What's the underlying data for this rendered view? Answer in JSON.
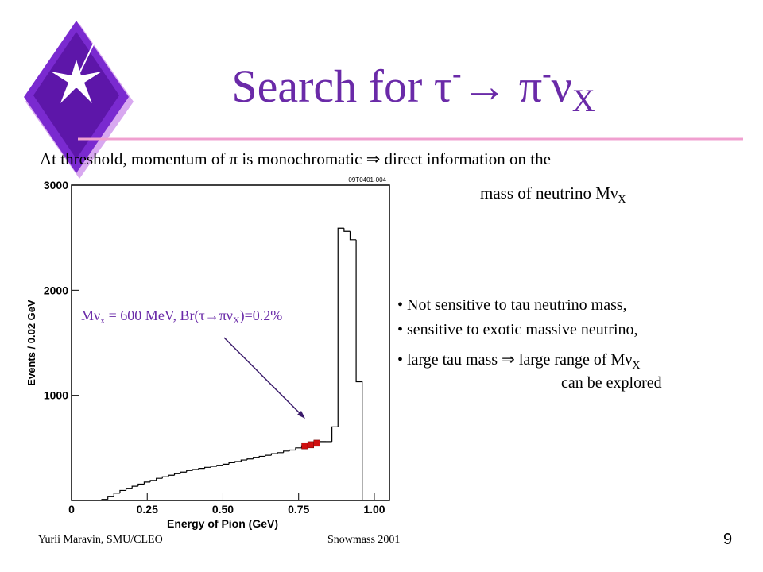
{
  "title": [
    "Search for τ",
    "-",
    "→ π",
    "-",
    "ν",
    "X"
  ],
  "intro": {
    "line1": "At threshold, momentum of π is monochromatic ⇒ direct information on the",
    "line2": "mass of neutrino Mν",
    "line2_sub": "X"
  },
  "annotation": [
    "Mν",
    "x",
    " = 600 MeV, Br(τ→πν",
    "X",
    ")=0.2%"
  ],
  "bullets": [
    {
      "text": "Not sensitive to tau neutrino mass,"
    },
    {
      "text": "sensitive to exotic massive neutrino,"
    },
    {
      "text": "large tau mass ⇒ large range of Mν",
      "sub": "X",
      "cont": "can be explored"
    }
  ],
  "footer": {
    "author": "Yurii Maravin, SMU/CLEO",
    "event": "Snowmass 2001",
    "page": "9"
  },
  "chart_data": {
    "type": "histogram",
    "plot_id": "09T0401-004",
    "xlabel": "Energy of Pion (GeV)",
    "ylabel": "Events / 0.02 GeV",
    "xlim": [
      0,
      1.05
    ],
    "ylim": [
      0,
      3000
    ],
    "xticks": [
      0,
      {
        "value": 0.25,
        "label": "0.25"
      },
      {
        "value": 0.5,
        "label": "0.50"
      },
      {
        "value": 0.75,
        "label": "0.75"
      },
      {
        "value": 1,
        "label": "1.00"
      }
    ],
    "yticks": [
      1000,
      2000,
      3000
    ],
    "color": "#000000",
    "bins": [
      0.1,
      0.12,
      0.14,
      0.16,
      0.18,
      0.2,
      0.22,
      0.24,
      0.26,
      0.28,
      0.3,
      0.32,
      0.34,
      0.36,
      0.38,
      0.4,
      0.42,
      0.44,
      0.46,
      0.48,
      0.5,
      0.52,
      0.54,
      0.56,
      0.58,
      0.6,
      0.62,
      0.64,
      0.66,
      0.68,
      0.7,
      0.72,
      0.74,
      0.76,
      0.78,
      0.8,
      0.82,
      0.84,
      0.86,
      0.88,
      0.9,
      0.92,
      0.94,
      0.96
    ],
    "values": [
      10,
      40,
      70,
      95,
      115,
      135,
      155,
      175,
      190,
      210,
      225,
      240,
      255,
      270,
      285,
      295,
      305,
      315,
      325,
      335,
      345,
      360,
      370,
      385,
      395,
      410,
      420,
      430,
      445,
      455,
      470,
      480,
      500,
      520,
      530,
      545,
      560,
      560,
      700,
      2590,
      2560,
      2480,
      1130
    ],
    "signal": {
      "color": "#d01010",
      "bins": [
        0.76,
        0.78,
        0.8,
        0.82
      ],
      "values": [
        60,
        60,
        60
      ]
    }
  }
}
